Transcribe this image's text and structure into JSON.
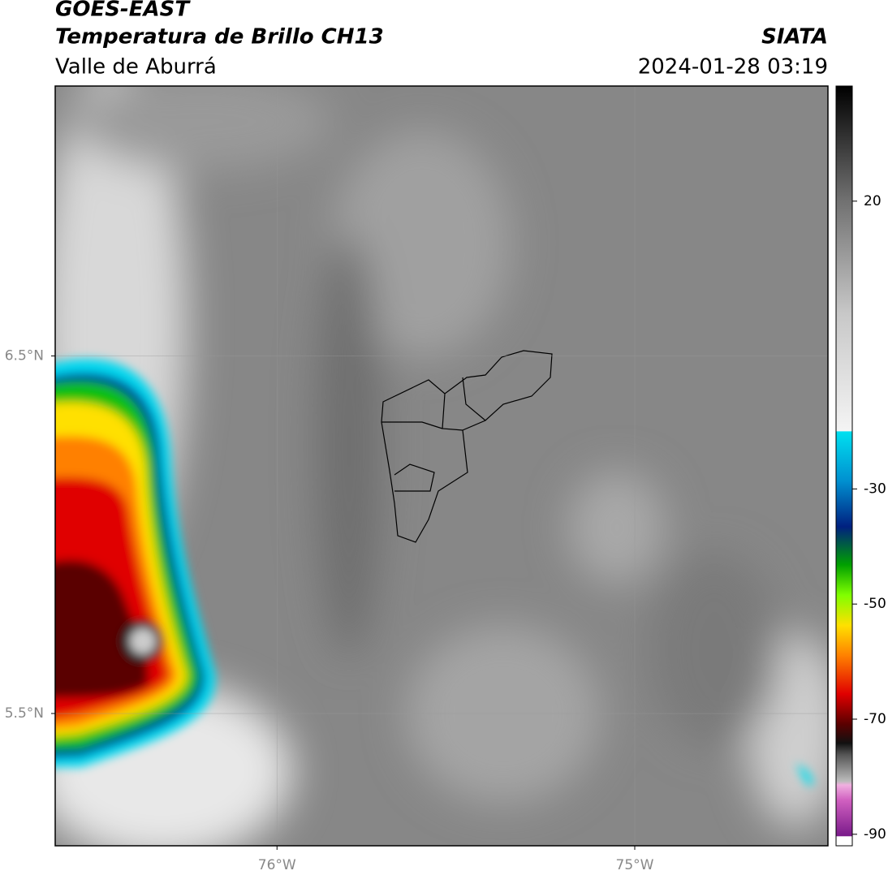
{
  "header": {
    "title": "GOES-EAST",
    "subtitle": "Temperatura de Brillo CH13",
    "region": "Valle de Aburrá",
    "source": "SIATA",
    "datetime": "2024-01-28 03:19"
  },
  "map": {
    "xlim": [
      -76.62,
      -74.46
    ],
    "ylim": [
      5.13,
      7.255
    ],
    "xticks": [
      {
        "value": -76,
        "label": "76°W"
      },
      {
        "value": -75,
        "label": "75°W"
      }
    ],
    "yticks": [
      {
        "value": 6.5,
        "label": "6.5°N"
      },
      {
        "value": 5.5,
        "label": "5.5°N"
      }
    ]
  },
  "colorbar": {
    "lim": [
      -92,
      40
    ],
    "ticks": [
      20,
      -30,
      -50,
      -70,
      -90
    ]
  }
}
